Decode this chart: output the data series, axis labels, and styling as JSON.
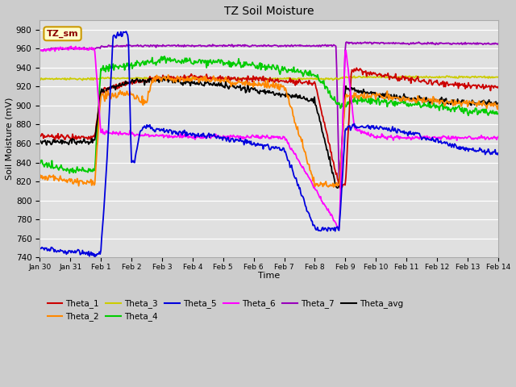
{
  "title": "TZ Soil Moisture",
  "xlabel": "Time",
  "ylabel": "Soil Moisture (mV)",
  "ylim": [
    740,
    990
  ],
  "yticks": [
    740,
    760,
    780,
    800,
    820,
    840,
    860,
    880,
    900,
    920,
    940,
    960,
    980
  ],
  "colors": {
    "Theta_1": "#cc0000",
    "Theta_2": "#ff8800",
    "Theta_3": "#cccc00",
    "Theta_4": "#00cc00",
    "Theta_5": "#0000dd",
    "Theta_6": "#ff00ff",
    "Theta_7": "#9900bb",
    "Theta_avg": "#000000"
  },
  "legend_label_box": "TZ_sm",
  "date_labels": [
    "Jan 30",
    "Jan 31",
    "Feb 1",
    "Feb 2",
    "Feb 3",
    "Feb 4",
    "Feb 5",
    "Feb 6",
    "Feb 7",
    "Feb 8",
    "Feb 9",
    "Feb 10",
    "Feb 11",
    "Feb 12",
    "Feb 13",
    "Feb 14"
  ]
}
